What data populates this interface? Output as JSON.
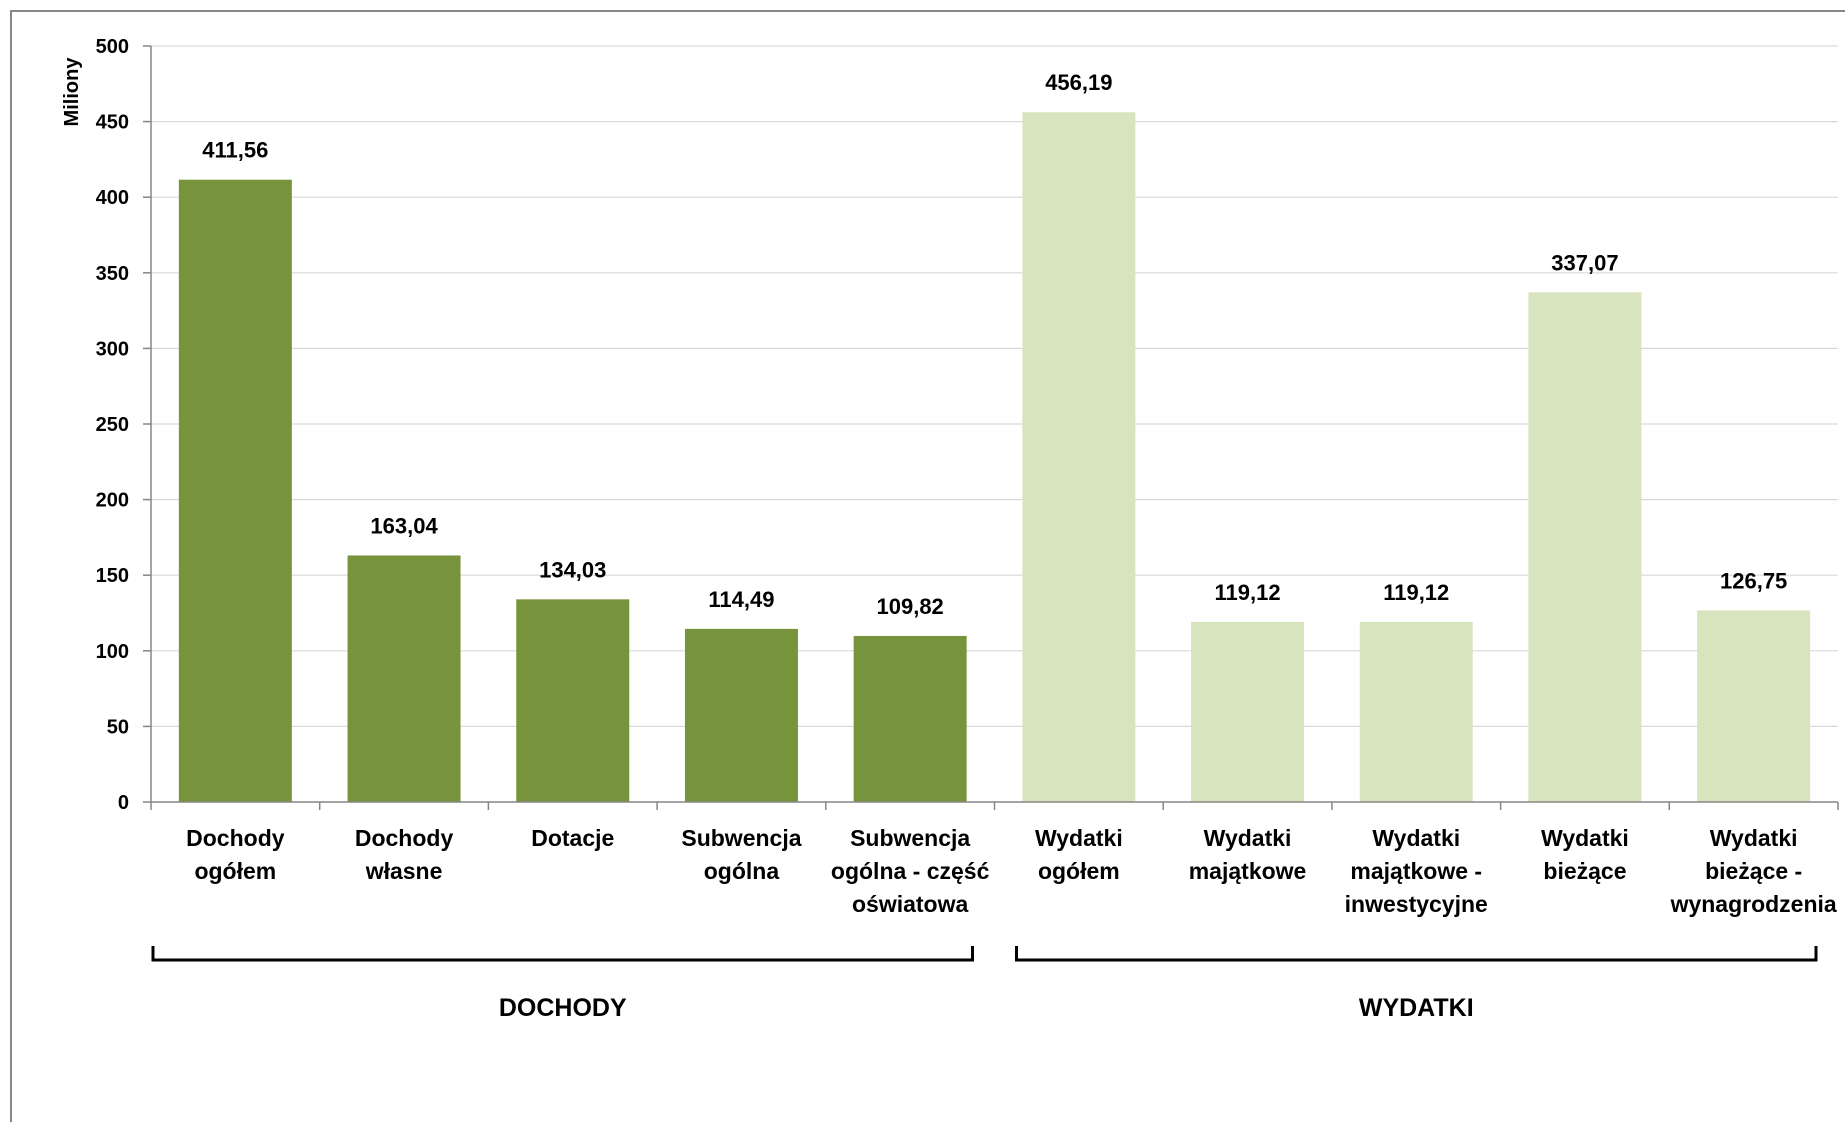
{
  "chart_data": {
    "type": "bar",
    "ylabel": "Miliony",
    "ylim": [
      0,
      500
    ],
    "y_ticks": [
      0,
      50,
      100,
      150,
      200,
      250,
      300,
      350,
      400,
      450,
      500
    ],
    "grid": true,
    "legend": "none",
    "colors": {
      "dochody": "#77933c",
      "wydatki": "#d7e4bd"
    },
    "categories": [
      [
        "Dochody",
        "ogółem"
      ],
      [
        "Dochody",
        "własne"
      ],
      [
        "Dotacje"
      ],
      [
        "Subwencja",
        "ogólna"
      ],
      [
        "Subwencja",
        "ogólna - część",
        "oświatowa"
      ],
      [
        "Wydatki",
        "ogółem"
      ],
      [
        "Wydatki",
        "majątkowe"
      ],
      [
        "Wydatki",
        "majątkowe -",
        "inwestycyjne"
      ],
      [
        "Wydatki",
        "bieżące"
      ],
      [
        "Wydatki",
        "bieżące -",
        "wynagrodzenia"
      ]
    ],
    "values": [
      411.56,
      163.04,
      134.03,
      114.49,
      109.82,
      456.19,
      119.12,
      119.12,
      337.07,
      126.75
    ],
    "data_labels": [
      "411,56",
      "163,04",
      "134,03",
      "114,49",
      "109,82",
      "456,19",
      "119,12",
      "119,12",
      "337,07",
      "126,75"
    ],
    "bar_group": [
      "dochody",
      "dochody",
      "dochody",
      "dochody",
      "dochody",
      "wydatki",
      "wydatki",
      "wydatki",
      "wydatki",
      "wydatki"
    ],
    "groups": [
      {
        "key": "dochody",
        "label": "DOCHODY",
        "start": 0,
        "end": 4
      },
      {
        "key": "wydatki",
        "label": "WYDATKI",
        "start": 5,
        "end": 9
      }
    ]
  }
}
